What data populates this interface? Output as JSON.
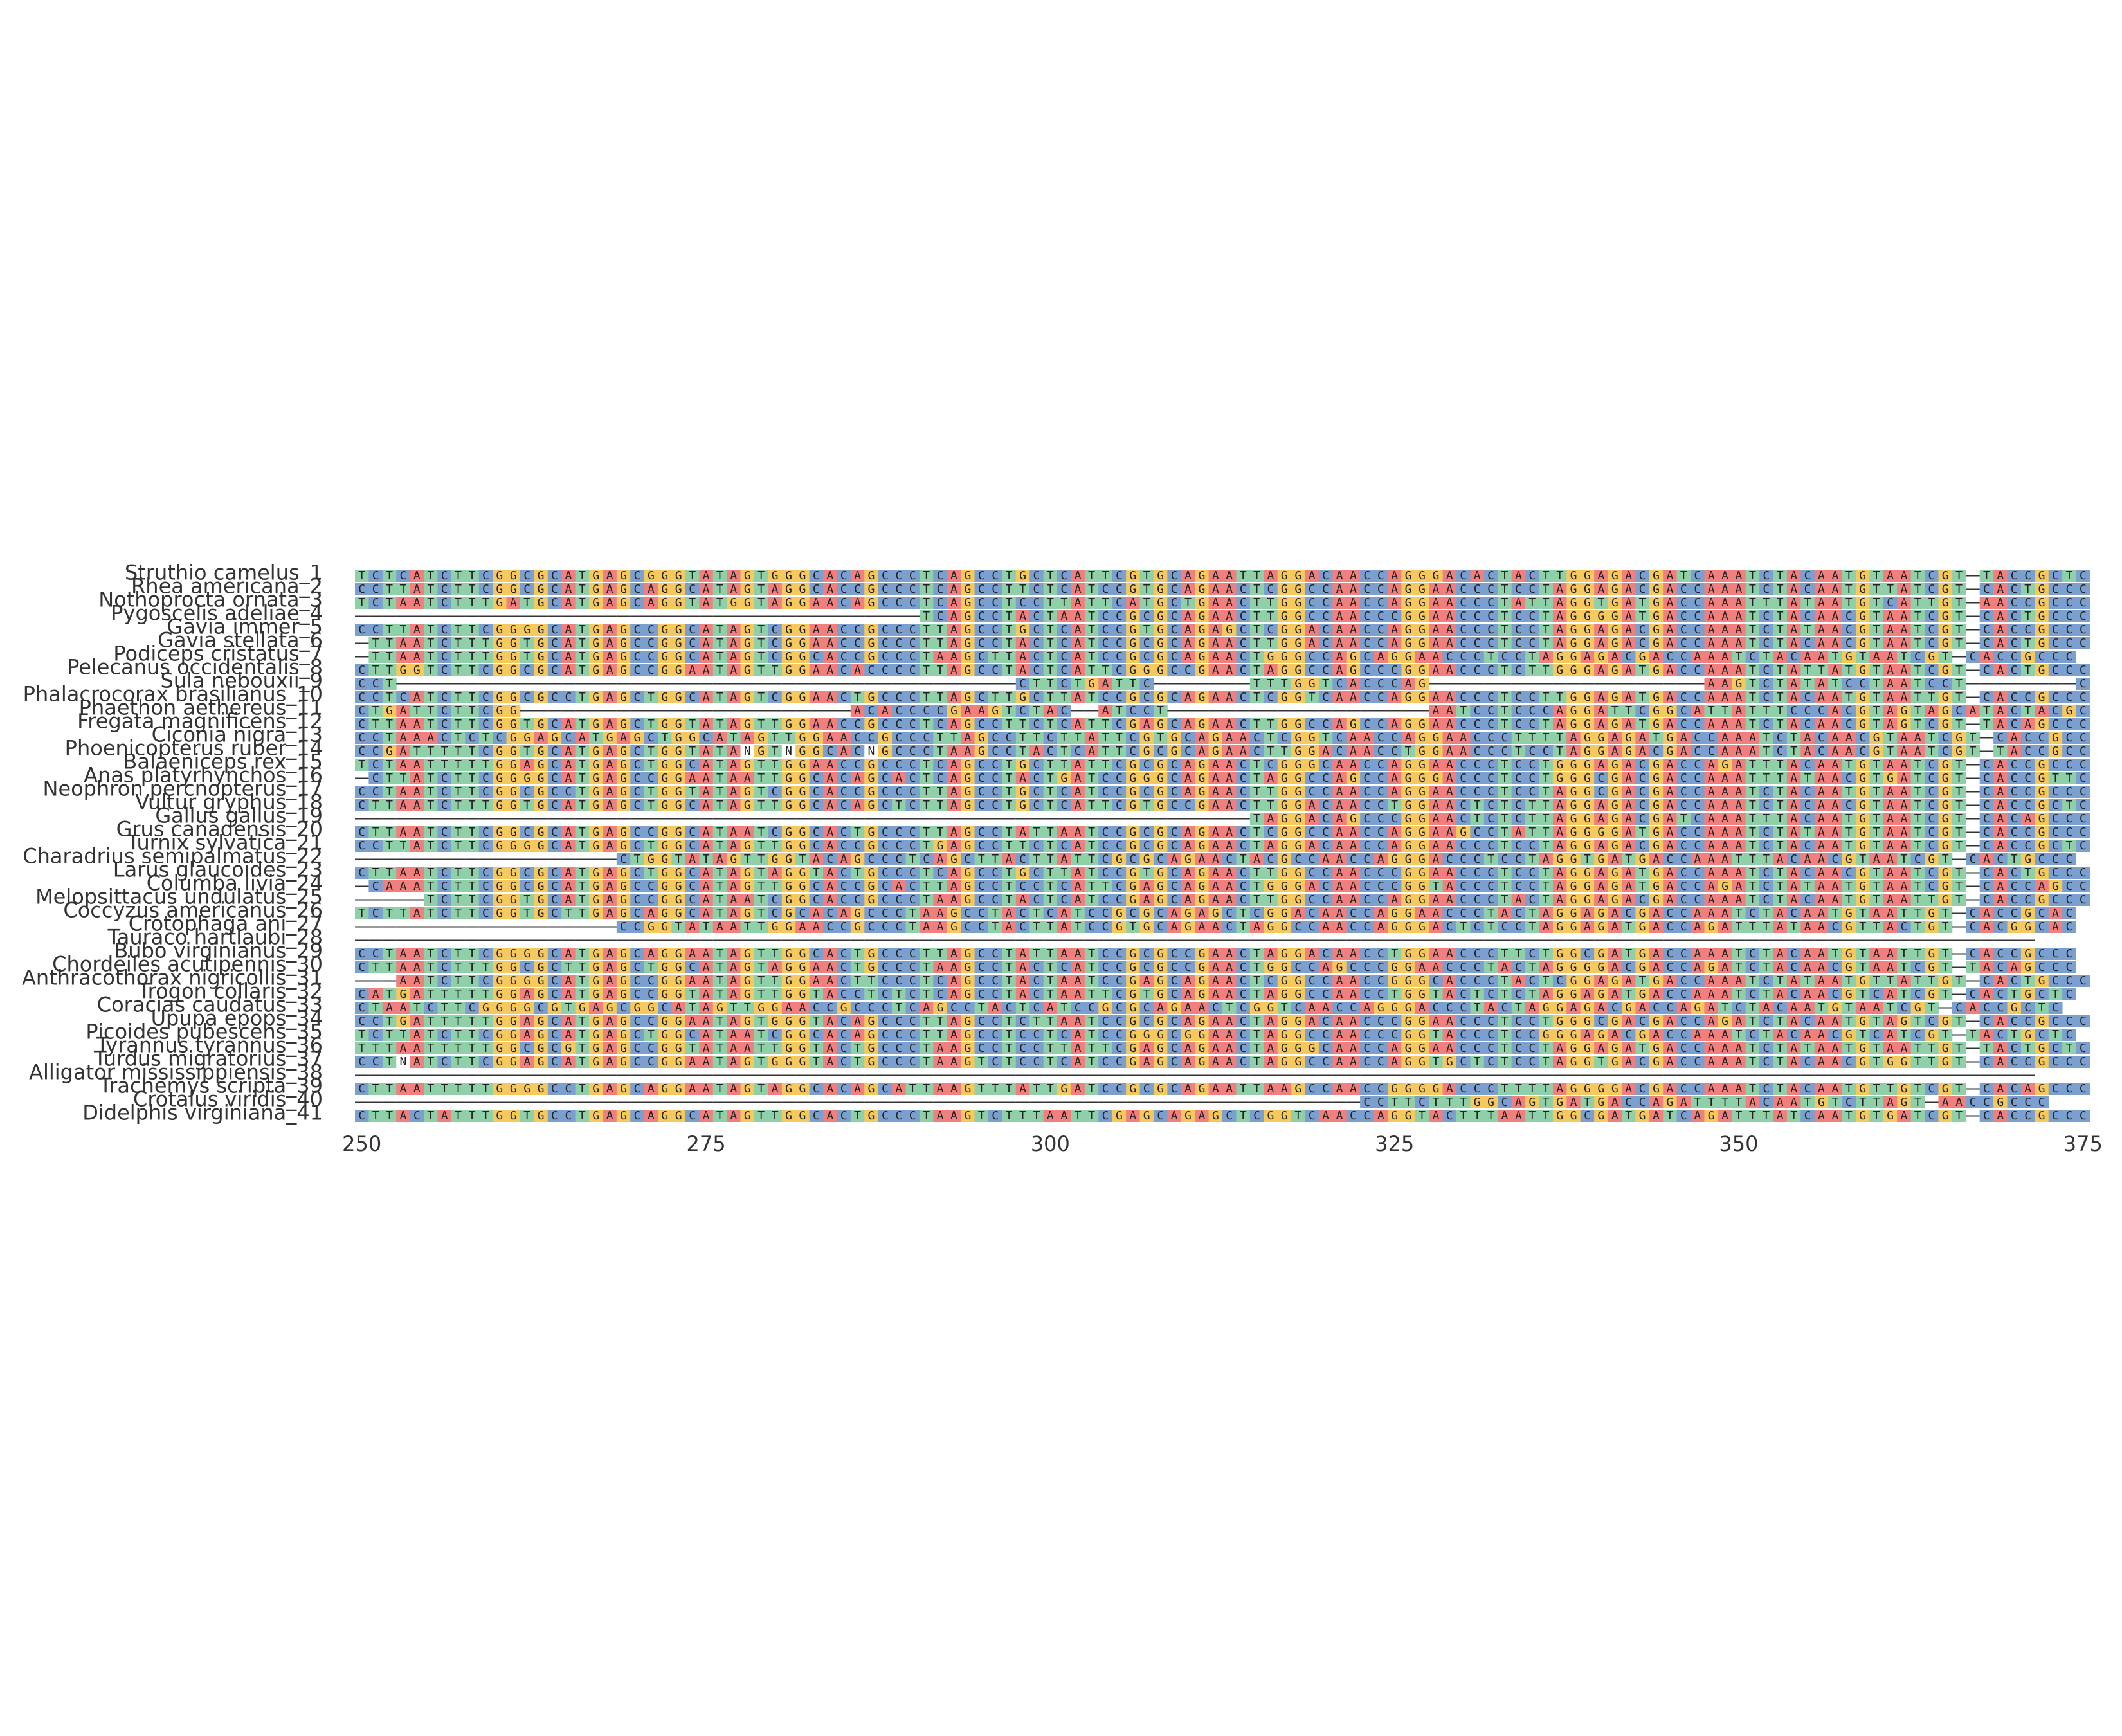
{
  "chart_data": {
    "type": "heatmap",
    "title": "",
    "xlabel": "",
    "ylabel": "",
    "xlim": [
      250,
      375
    ],
    "x_ticks": [
      250,
      275,
      300,
      325,
      350,
      375
    ],
    "grid": false,
    "legend": "none",
    "colors": {
      "A": "#f07f7e",
      "C": "#7ba0d0",
      "G": "#f5c95e",
      "T": "#8fd0a8",
      "-": "#ffffff",
      "N": "#ffffff"
    },
    "taxa": [
      {
        "name": "Struthio camelus_1",
        "seq": "TCTCATCTTCGGCGCATGAGCGGGTATAGTGGGCACAGCCCTCAGCCTGCTCATTCGTGCAGAATTAGGACAACCAGGGACACTACTTGGAGACGATCAAATCTACAATGTAATCGT-TACCGCTC"
      },
      {
        "name": "Rhea americana_2",
        "seq": "CCTTATCTTCGGCGCATGAGCAGGCATAGTAGGCACCGCCCTCAGCCTTCTCATCCGTGCAGAACTCGGCCAACCAGGAACCCTCCTAGGAGACGACCAAATCTACAATGTTATCGT-CACTGCCC"
      },
      {
        "name": "Nothoprocta ornata_3",
        "seq": "TCTAATCTTTGATGCATGAGCAGGTATGGTAGGAACAGCCCTCAGCCTCCTTATTCATGCTGAACTTGGCCAACCAGGAACCCTATTAGGTGATGACCAAATTTATAATGTCATTGT-AACCGCCC"
      },
      {
        "name": "Pygoscelis adeliae_4",
        "seq": "-----------------------------------------TCAGCCTACTAATCCGCGCAGAACTTGGCCAACCCGGAACCCTCCTAGGGGATGACCAAATCTACAACGTAATCGT-CACTGCCC"
      },
      {
        "name": "Gavia immer_5",
        "seq": "CCTTATCTTCGGGGCATGAGCCGGCATAGTCGGAACCGCCCTTAGCCTGCTCATCCGTGCAGAGCTCGGACAACCAGGAACCCTCCTAGGAGACGACCAAATCTATAACGTAATCGT-CACCGCCC"
      },
      {
        "name": "Gavia stellata_6",
        "seq": "-TTAATCTTTGGTGCATGAGCCGGCATAGTCGGAACCGCCCTTAGCCTACTCATCCGCGCAGAACTTGGACAACCAGGAACCCTCCTAGGAGACGACCAAATCTACAACGTAATCGT-CACTGCCC"
      },
      {
        "name": "Podiceps cristatus_7",
        "seq": "-TTAATCTTTGGTGCATGAGCCGGCATAGTCGGCACCGCCCTAAGCTTACTCATCCGCGCAGAACTGGGCCAGCAGGAACCCTCCTAGGAGACGACCAAATCTACAATGTAATCGT-CACCGCCC"
      },
      {
        "name": "Pelecanus occidentalis_8",
        "seq": "CTTGGTCTTCGGCGCATGAGCCGGAATAGTTGGAACACCCCTTAGCCTACTCATTCGGGCCGAACTAGGCCAGCCCGGAACCCTCTTGGGAGATGACCAAATCTATTATGTAATCGT-CACTGCCC"
      },
      {
        "name": "Sula nebouxii_9",
        "seq": "CCT---------------------------------------------CTTCTGATTC-------TTTGGTCACCCAG--------------------AAGTCTATATCCTAATCCT--------CC"
      },
      {
        "name": "Phalacrocorax brasilianus_10",
        "seq": "CCTCATCTTCGGCGCCTGAGCTGGCATAGTCGGAACTGCCCTTAGCTTGCTTATCCGCGCAGAACTCGGTCAACCAGGAACCCTCCTTGGAGATGACCAAATCTACAATGTAATTGT-CACCGCCC"
      },
      {
        "name": "Phaethon aethereus_11",
        "seq": "CTGATTCTTCGG------------------------ACACCCCGAAGTCTAC--ATCCT-------------------AATCCTCCCAGGATTCGGCATTATTTCCCACGTAGTAGCATACTACGC"
      },
      {
        "name": "Fregata magnificens_12",
        "seq": "CTTAATCTTCGGTGCATGAGCTGGTATAGTTGGAACCGCCCTCAGCCTTCTCATTCGAGCAGAACTTGGCCAGCCAGGAACCCTCCTAGGAGATGACCAAATCTACAACGTAGTCGT-TACAGCCC"
      },
      {
        "name": "Ciconia nigra_13",
        "seq": "CCTAAACTCTCGGAGCATGAGCTGGCATAGTTGGAACCGCCCTTAGCCTTCTTATTCGTGCAGAACTCGGTCAACCAGGAACCCTTTTAGGAGATGACCAAATCTACAACGTAATCGT-CACCGCCC"
      },
      {
        "name": "Phoenicopterus ruber_14",
        "seq": "CCGATTTTTCGGTGCATGAGCTGGTATANGTNGGCACNGCCCTAAGCCTACTCATTCGCGCAGAACTTGGACAACCTGGAACCCTCCTAGGAGACGACCAAATCTACAACGTAATCGT-TACCGCCC"
      },
      {
        "name": "Balaeniceps rex_15",
        "seq": "TCTAATTTTTGGAGCATGAGCTGGCATAGTTGGAACCGCCCTCAGCCTGCTTATTCGCGCAGAACTCGGGCAACCAGGAACCCTCCTGGGAGACGACCAGATTTACAATGTAATCGT-CACCGCCC"
      },
      {
        "name": "Anas platyrhynchos_16",
        "seq": "-CTTATCTTCGGGGCATGAGCCGGAATAATTGGCACAGCACTCAGCCTACTGATCCGGGCAGAACTAGGCCAGCCAGGGACCCTCCTGGGCGACGACCAAATTTATAACGTGATCGT-CACCGTTC"
      },
      {
        "name": "Neophron percnopterus_17",
        "seq": "CCTAATCTTCGGCGCCTGAGCTGGTATAGTCGGCACCGCCCTTAGCCTGCTCATCCGCGCAGAACTTGGCCAACCAGGAACCCTCCTAGGCGACGACCAAATCTACAATGTAATCGT-CACCGCCC"
      },
      {
        "name": "Vultur gryphus_18",
        "seq": "CTTAATCTTTGGTGCATGAGCTGGCATAGTTGGCACAGCTCTTAGCCTGCTCATTCGTGCCGAACTTGGACAACCTGGAACTCTCTTAGGAGACGACCAAATCTACAACGTAATCGT-CACCGCTC"
      },
      {
        "name": "Gallus gallus_19",
        "seq": "-----------------------------------------------------------------TAGGACAGCCCGGAACTCTCTTAGGAGACGATCAAATTTACAATGTAATCGT-CACAGCCC"
      },
      {
        "name": "Grus canadensis_20",
        "seq": "CTTAATCTTCGGCGCATGAGCCGGCATAATCGGCACTGCCCTTAGCCTATTAATCCGCGCAGAACTCGGCCAACCAGGAAGCCTATTAGGGGATGACCAAATCTATAATGTAATCGT-CACCGCCC"
      },
      {
        "name": "Turnix sylvatica_21",
        "seq": "CCTTATCTTCGGGGCATGAGCTGGCATAGTTGGCACCGCCCTGAGCCTTCTCATCCGCGCAGAACTAGGACAACCAGGAACCCTCCTAGGAGACGACCAAATCTACAATGTAATCGT-CACCGCTC"
      },
      {
        "name": "Charadrius semipalmatus_22",
        "seq": "-------------------CTGGTATAGTTGGTACAGCCCTCAGCTTACTTATTCGCGCAGAACTACGCCAACCAGGGACCCTCCTAGGTGATGACCAAATTTACAACGTAATCGT-CACTGCCC"
      },
      {
        "name": "Larus glaucoides_23",
        "seq": "CTTAATCTTCGGCGCATGAGCTGGCATAGTAGGTACTGCCCTCAGCCTGCTTATCCGTGCAGAACTTGGCCAACCCGGAACCCTCCTAGGAGATGACCAAATCTACAACGTAATCGT-CACTGCCC"
      },
      {
        "name": "Columba livia_24",
        "seq": "-CAAATCTTCGGCGCATGAGCCGGCATAGTTGGCACCGCACTTAGCCTCCTCATTCGAGCAGAACTGGGACAACCCGGTACCCTCCTAGGAGATGACCAGATCTATAATGTAATCGT-CACCAGCC"
      },
      {
        "name": "Melopsittacus undulatus_25",
        "seq": "-----TCTTCGGTGCATGAGCCGGCATAATCGGCACCGCCCTAAGCCTACTCATCCGAGCAGAACTTGGCCAACCAGGAACCCTACTAGGAGACGACCAAATCTACAATGTAATTGT-CACCGCCC"
      },
      {
        "name": "Coccyzus americanus_26",
        "seq": "TCTTATCTTCGGTGCTTGAGCAGGCATAGTCGCACAGCCCTAAGCCTACTCATCCGCGCAGAGCTCGGACAACCAGGAACCCTACTAGGAGACGACCAAATCTACAATGTAATTGT-CACCGCAC"
      },
      {
        "name": "Crotophaga ani_27",
        "seq": "-------------------CCGGTATAATTGGAACCGCCCTAAGCCTACTTATCCGTGCAGAACTAGGCCAACCAGGGACTCTCCTAGGAGATGACCAGATTTATAACGTTACTGT-CACGGCAC"
      },
      {
        "name": "Tauraco hartlaubi_28",
        "seq": "--------------------------------------------------------------------------------------------------------------------------"
      },
      {
        "name": "Bubo virginianus_29",
        "seq": "CCTAATCTTCGGGGCATGAGCAGGAATAGTTGGCACTGCCCTTAGCCTATTAATCCGCGCCGAACTAGGACAACCTGGAACCCTTCTGGCGATGACCAAATCTACAATGTAATTGT-CACCGCCC"
      },
      {
        "name": "Chordeiles acutipennis_30",
        "seq": "CTTAATCTTTGGCGCTTGAGCTGGCATAGTAGGAACTGCCCTAAGCCTACTCATCCGCGCCGAACTGGCCAGCCCGGAACCCTACTAGGGGACGACCAGATCTACAACGTAATCGT-TACAGCCC"
      },
      {
        "name": "Anthracothorax nigricollis_31",
        "seq": "---AATCTTCGGGGCATGAGCCGGAATAGTTGGAACTTCCCTCAGCCTACTAATCCGAGCAGAACTCGGCCAACCGGGCACCCTACTCGGAGATGACCAAATCTATAATGTTATTGT-CACTGCCC"
      },
      {
        "name": "Trogon collaris_32",
        "seq": "CATGATTTTTGGAGCATGAGCCGGTATAGTTGGTACCTCTCTCAGCCTACTAATTCGTGCAGAACTAGGCCAACCTGGTACTCTCTAGGAGATGACCAAATCTACAACGTCATCGT-CACTGCTC"
      },
      {
        "name": "Coracias caudatus_33",
        "seq": "CTAATCTTCGGGGCGTGAGCGGCATAGTTGGAACCGCCCTCAGCCTACTCATCCGCGCAGAACTCGGTCAACCAGGGACCCTACTAGGAGACGACCAGATCTACAATGTAATCGT-CACCGCTC"
      },
      {
        "name": "Upupa epops_34",
        "seq": "CCTGATTTTTGGAGCATGAGCCGGAATAGTGGGTACAGCCCTTAGCCTCTTAATCCGCGCAGAACTAGGACAACCCGGAACCCTCCTGGGCGACGACCAGATCTACAATGTAGTCGT-CACCGCCC"
      },
      {
        "name": "Picoides pubescens_35",
        "seq": "TCTTATCTTCGGAGCATGAGCTGGCATAATCGGCACAGCCCTTAGCCTCCTCATCCGGGCGGAACTAGGCCAACCCGGTACCCTCCGGGAGACGACCAAATCTACAACGTCATCGT-TACTGCTC"
      },
      {
        "name": "Tyrannus tyrannus_36",
        "seq": "TTTAATTTTTGGCGCGTGAGCCGGTATAATTGGTACTGCCCTAAGCCTCCTTATTCGAGCAGAACTAGGGCAACCAGGAACCCTCCTAGGAGATGACCAAATCTATAATGTAATTGT-TACTGCTC"
      },
      {
        "name": "Turdus migratorius_37",
        "seq": "CCTNATCTTCGGAGCATGAGCCGGAATAGTGGGTACTGCCCTAAGTCTCCTCATCCGAGCAGAACTAGGCCAACCAGGTGCTCTCCTAGGTGACGACCAAATCTACAACGTGGTTGT-CACCGCCC"
      },
      {
        "name": "Alligator mississippiensis_38",
        "seq": "--------------------------------------------------------------------------------------------------------------------------"
      },
      {
        "name": "Trachemys scripta_39",
        "seq": "CTTAATTTTTGGGGCCTGAGCAGGAATAGTAGGCACAGCATTAAGTTTATTGATCCGCGCAGAATTAAGCCAACCGGGGACCCTTTTAGGGGACGACCAAATCTACAATGTTGTCGT-CACAGCCC"
      },
      {
        "name": "Crotalus viridis_40",
        "seq": "-------------------------------------------------------------------------CCTTCTTTGGCAGTGATGACCAGATTTTACAATGTCTTAGT-AACCGCCC"
      },
      {
        "name": "Didelphis virginiana_41",
        "seq": "CTTACTATTTGGTGCCTGAGCAGGCATAGTTGGCACTGCCCTAAGTCTTTAATTCGAGCAGAGCTCGGTCAACCAGGTACTTTAATTGGCGATGATCAGATTTATCAATGTGATCGT-CACCGCCC"
      }
    ]
  }
}
